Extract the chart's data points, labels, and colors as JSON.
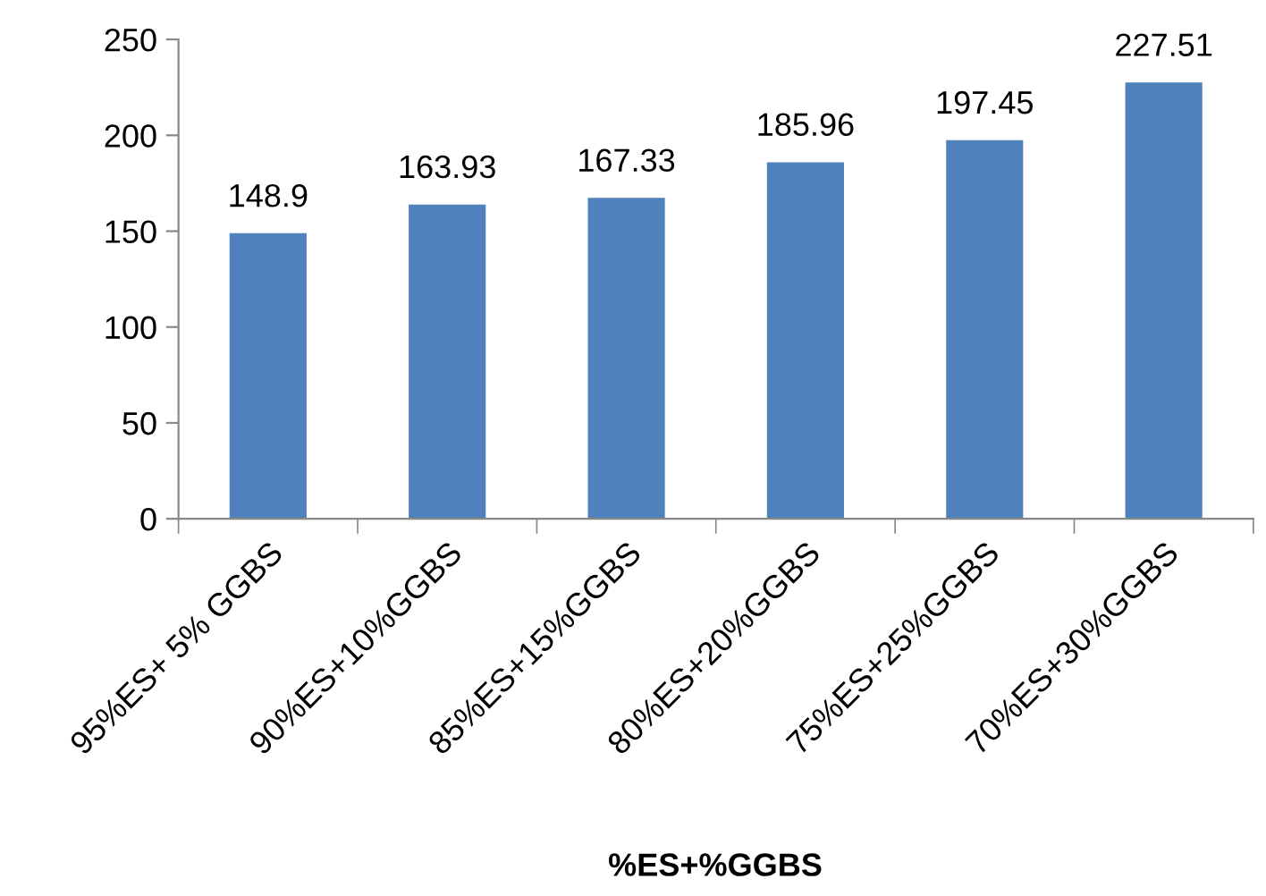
{
  "chart_data": {
    "type": "bar",
    "xlabel": "%ES+%GGBS",
    "categories": [
      "95%ES+ 5% GGBS",
      "90%ES+10%GGBS",
      "85%ES+15%GGBS",
      "80%ES+20%GGBS",
      "75%ES+25%GGBS",
      "70%ES+30%GGBS"
    ],
    "values": [
      148.9,
      163.93,
      167.33,
      185.96,
      197.45,
      227.51
    ],
    "color": "#4f81bd",
    "ylim": [
      0,
      250
    ],
    "yticks": [
      0,
      50,
      100,
      150,
      200,
      250
    ],
    "data_labels": true,
    "grid": false,
    "legend": false
  }
}
